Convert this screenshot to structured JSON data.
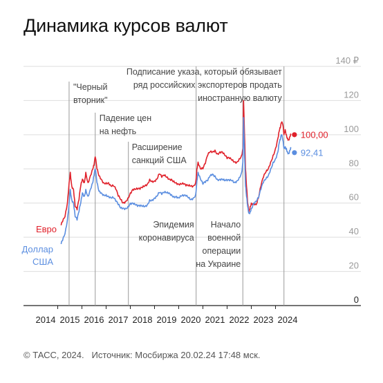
{
  "title": "Динамика курсов валют",
  "footer": {
    "copyright": "© ТАСС, 2024.",
    "source": "Источник: Мосбиржа 20.02.24 17:48 мск."
  },
  "chart_data": {
    "type": "line",
    "xlabel": "",
    "ylabel": "",
    "x_ticks": [
      "2014",
      "2015",
      "2016",
      "2017",
      "2018",
      "2019",
      "2020",
      "2021",
      "2022",
      "2023",
      "2024"
    ],
    "y_ticks": [
      "0",
      "20",
      "40",
      "60",
      "80",
      "100",
      "120",
      "140 ₽"
    ],
    "ylim": [
      0,
      140
    ],
    "xlim": [
      2014.0,
      2024.5
    ],
    "grid": true,
    "colors": {
      "euro": "#e0202a",
      "usd": "#5b8ee0",
      "grid": "#dddddd",
      "event_line": "#999999"
    },
    "series": [
      {
        "name": "Евро",
        "last_label": "100,00",
        "x": [
          2014.64,
          2014.7,
          2014.8,
          2014.9,
          2014.97,
          2015.02,
          2015.08,
          2015.15,
          2015.22,
          2015.3,
          2015.38,
          2015.45,
          2015.52,
          2015.6,
          2015.66,
          2015.75,
          2015.85,
          2015.95,
          2016.0,
          2016.05,
          2016.12,
          2016.2,
          2016.3,
          2016.4,
          2016.5,
          2016.6,
          2016.7,
          2016.8,
          2016.9,
          2017.0,
          2017.1,
          2017.2,
          2017.3,
          2017.4,
          2017.5,
          2017.6,
          2017.7,
          2017.8,
          2017.9,
          2018.0,
          2018.1,
          2018.2,
          2018.3,
          2018.4,
          2018.5,
          2018.6,
          2018.7,
          2018.8,
          2018.9,
          2019.0,
          2019.1,
          2019.2,
          2019.3,
          2019.4,
          2019.5,
          2019.6,
          2019.7,
          2019.8,
          2019.9,
          2020.0,
          2020.1,
          2020.2,
          2020.25,
          2020.3,
          2020.4,
          2020.5,
          2020.6,
          2020.7,
          2020.8,
          2020.9,
          2021.0,
          2021.1,
          2021.2,
          2021.3,
          2021.4,
          2021.5,
          2021.6,
          2021.7,
          2021.8,
          2021.9,
          2022.0,
          2022.1,
          2022.15,
          2022.18,
          2022.22,
          2022.26,
          2022.3,
          2022.35,
          2022.4,
          2022.45,
          2022.5,
          2022.6,
          2022.7,
          2022.8,
          2022.9,
          2023.0,
          2023.1,
          2023.2,
          2023.3,
          2023.4,
          2023.5,
          2023.6,
          2023.65,
          2023.7,
          2023.75,
          2023.8,
          2023.85,
          2023.9,
          2023.95,
          2024.0,
          2024.05,
          2024.1,
          2024.14
        ],
        "values": [
          47,
          49,
          52,
          60,
          72,
          78,
          70,
          68,
          58,
          56,
          62,
          70,
          74,
          72,
          78,
          72,
          76,
          80,
          82,
          87,
          80,
          76,
          74,
          72,
          72,
          72,
          70,
          70,
          68,
          64,
          62,
          60,
          61,
          63,
          66,
          68,
          68,
          68,
          68,
          69,
          70,
          71,
          74,
          73,
          73,
          74,
          77,
          75,
          76,
          75,
          74,
          74,
          73,
          72,
          71,
          71,
          71,
          70,
          70,
          70,
          70,
          72,
          80,
          84,
          80,
          80,
          83,
          88,
          90,
          90,
          91,
          89,
          90,
          90,
          88,
          86,
          86,
          85,
          84,
          84,
          86,
          88,
          92,
          120,
          100,
          80,
          70,
          60,
          55,
          58,
          60,
          60,
          59,
          63,
          70,
          75,
          78,
          80,
          84,
          88,
          92,
          98,
          102,
          104,
          107,
          106,
          100,
          103,
          100,
          98,
          97,
          99,
          100
        ]
      },
      {
        "name": "Доллар США",
        "last_label": "92,41",
        "x": [
          2014.64,
          2014.7,
          2014.8,
          2014.9,
          2014.97,
          2015.02,
          2015.08,
          2015.15,
          2015.22,
          2015.3,
          2015.38,
          2015.45,
          2015.52,
          2015.6,
          2015.66,
          2015.75,
          2015.85,
          2015.95,
          2016.0,
          2016.05,
          2016.12,
          2016.2,
          2016.3,
          2016.4,
          2016.5,
          2016.6,
          2016.7,
          2016.8,
          2016.9,
          2017.0,
          2017.1,
          2017.2,
          2017.3,
          2017.4,
          2017.5,
          2017.6,
          2017.7,
          2017.8,
          2017.9,
          2018.0,
          2018.1,
          2018.2,
          2018.3,
          2018.4,
          2018.5,
          2018.6,
          2018.7,
          2018.8,
          2018.9,
          2019.0,
          2019.1,
          2019.2,
          2019.3,
          2019.4,
          2019.5,
          2019.6,
          2019.7,
          2019.8,
          2019.9,
          2020.0,
          2020.1,
          2020.2,
          2020.25,
          2020.3,
          2020.4,
          2020.5,
          2020.6,
          2020.7,
          2020.8,
          2020.9,
          2021.0,
          2021.1,
          2021.2,
          2021.3,
          2021.4,
          2021.5,
          2021.6,
          2021.7,
          2021.8,
          2021.9,
          2022.0,
          2022.1,
          2022.15,
          2022.18,
          2022.22,
          2022.26,
          2022.3,
          2022.35,
          2022.4,
          2022.45,
          2022.5,
          2022.6,
          2022.7,
          2022.8,
          2022.9,
          2023.0,
          2023.1,
          2023.2,
          2023.3,
          2023.4,
          2023.5,
          2023.6,
          2023.65,
          2023.7,
          2023.75,
          2023.8,
          2023.85,
          2023.9,
          2023.95,
          2024.0,
          2024.05,
          2024.1,
          2024.14
        ],
        "values": [
          36,
          38,
          42,
          50,
          60,
          68,
          62,
          60,
          52,
          50,
          55,
          60,
          66,
          64,
          68,
          64,
          68,
          72,
          76,
          80,
          72,
          67,
          66,
          65,
          65,
          64,
          63,
          63,
          61,
          59,
          57,
          57,
          57,
          58,
          60,
          60,
          59,
          58,
          58,
          58,
          58,
          59,
          62,
          62,
          63,
          64,
          66,
          65,
          66,
          66,
          66,
          65,
          64,
          64,
          63,
          64,
          64,
          64,
          63,
          62,
          63,
          65,
          73,
          78,
          74,
          71,
          72,
          73,
          76,
          77,
          76,
          74,
          74,
          74,
          73,
          73,
          73,
          73,
          72,
          73,
          75,
          78,
          84,
          110,
          88,
          70,
          64,
          58,
          54,
          55,
          57,
          60,
          61,
          63,
          68,
          72,
          74,
          76,
          80,
          84,
          86,
          90,
          95,
          97,
          100,
          97,
          92,
          93,
          92,
          90,
          89,
          91,
          92
        ]
      }
    ],
    "events": [
      {
        "x": 2014.97,
        "label": [
          "\"Черный",
          "вторник\""
        ],
        "position": "top"
      },
      {
        "x": 2016.05,
        "label": [
          "Падение цен",
          "на нефть"
        ],
        "position": "top"
      },
      {
        "x": 2017.42,
        "label": [
          "Расширение",
          "санкций США"
        ],
        "position": "top"
      },
      {
        "x": 2020.22,
        "label": [
          "Эпидемия",
          "коронавируса"
        ],
        "position": "bottom"
      },
      {
        "x": 2022.15,
        "label": [
          "Начало",
          "военной",
          "операции",
          "на Украине"
        ],
        "position": "bottom"
      },
      {
        "x": 2023.85,
        "label": [
          "Подписание указа, который обязывает",
          "ряд российских экспортеров продать",
          "иностранную валюту"
        ],
        "position": "top"
      }
    ]
  }
}
